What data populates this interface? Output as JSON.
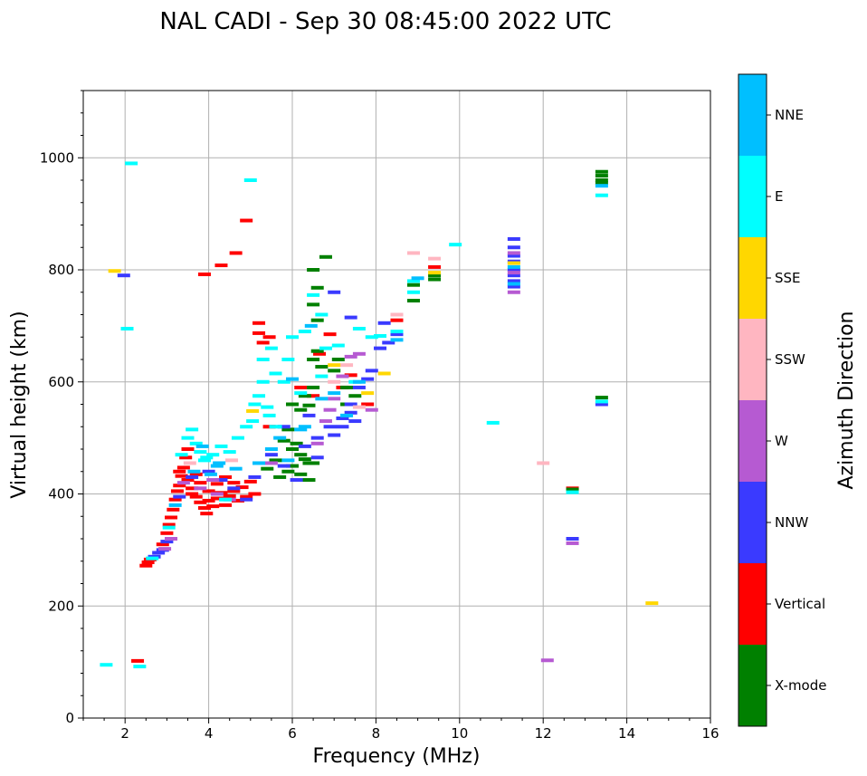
{
  "chart_data": {
    "type": "scatter",
    "title": "NAL CADI - Sep 30 08:45:00 2022 UTC",
    "xlabel": "Frequency (MHz)",
    "ylabel": "Virtual height (km)",
    "xlim": [
      1,
      16
    ],
    "ylim": [
      0,
      1120
    ],
    "xticks": [
      2,
      4,
      6,
      8,
      10,
      12,
      14,
      16
    ],
    "yticks": [
      0,
      200,
      400,
      600,
      800,
      1000
    ],
    "grid": true,
    "colorbar": {
      "title": "Azimuth Direction",
      "categories": [
        {
          "label": "X-mode",
          "color": "#008000"
        },
        {
          "label": "Vertical",
          "color": "#ff0000"
        },
        {
          "label": "NNW",
          "color": "#3a3aff"
        },
        {
          "label": "W",
          "color": "#b65ad2"
        },
        {
          "label": "SSW",
          "color": "#ffb6c1"
        },
        {
          "label": "SSE",
          "color": "#ffd700"
        },
        {
          "label": "E",
          "color": "#00ffff"
        },
        {
          "label": "NNE",
          "color": "#00bfff"
        }
      ]
    },
    "series": [
      {
        "name": "Vertical",
        "color": "#ff0000",
        "points": [
          [
            2.5,
            272
          ],
          [
            2.55,
            278
          ],
          [
            2.6,
            283
          ],
          [
            2.9,
            310
          ],
          [
            3.0,
            330
          ],
          [
            3.05,
            345
          ],
          [
            3.1,
            358
          ],
          [
            3.15,
            372
          ],
          [
            3.2,
            390
          ],
          [
            3.25,
            405
          ],
          [
            3.3,
            415
          ],
          [
            3.35,
            432
          ],
          [
            3.4,
            447
          ],
          [
            3.5,
            425
          ],
          [
            3.6,
            410
          ],
          [
            3.7,
            395
          ],
          [
            3.8,
            385
          ],
          [
            3.9,
            375
          ],
          [
            3.95,
            365
          ],
          [
            4.0,
            388
          ],
          [
            4.1,
            378
          ],
          [
            4.2,
            392
          ],
          [
            4.3,
            402
          ],
          [
            4.4,
            380
          ],
          [
            4.5,
            396
          ],
          [
            4.6,
            405
          ],
          [
            4.7,
            388
          ],
          [
            4.8,
            412
          ],
          [
            4.9,
            395
          ],
          [
            5.0,
            422
          ],
          [
            5.1,
            400
          ],
          [
            3.6,
            400
          ],
          [
            3.8,
            420
          ],
          [
            4.0,
            405
          ],
          [
            4.2,
            418
          ],
          [
            3.45,
            465
          ],
          [
            3.7,
            435
          ],
          [
            4.4,
            430
          ],
          [
            3.3,
            440
          ],
          [
            3.5,
            480
          ],
          [
            4.6,
            420
          ],
          [
            5.2,
            705
          ],
          [
            5.3,
            670
          ],
          [
            5.45,
            680
          ],
          [
            5.2,
            687
          ],
          [
            6.2,
            590
          ],
          [
            6.5,
            575
          ],
          [
            6.65,
            650
          ],
          [
            6.9,
            685
          ],
          [
            7.2,
            590
          ],
          [
            7.4,
            612
          ],
          [
            7.8,
            560
          ],
          [
            8.5,
            710
          ],
          [
            9.4,
            805
          ],
          [
            12.7,
            410
          ],
          [
            3.9,
            792
          ],
          [
            4.3,
            808
          ],
          [
            4.65,
            830
          ],
          [
            4.9,
            888
          ],
          [
            2.3,
            102
          ],
          [
            5.45,
            520
          ]
        ]
      },
      {
        "name": "X-mode",
        "color": "#008000",
        "points": [
          [
            5.8,
            495
          ],
          [
            6.0,
            480
          ],
          [
            6.2,
            470
          ],
          [
            6.4,
            455
          ],
          [
            5.6,
            460
          ],
          [
            5.9,
            440
          ],
          [
            6.2,
            435
          ],
          [
            6.4,
            425
          ],
          [
            5.4,
            445
          ],
          [
            5.7,
            430
          ],
          [
            6.0,
            450
          ],
          [
            6.1,
            490
          ],
          [
            6.3,
            462
          ],
          [
            6.5,
            455
          ],
          [
            6.3,
            575
          ],
          [
            6.4,
            558
          ],
          [
            6.2,
            550
          ],
          [
            6.5,
            590
          ],
          [
            6.5,
            640
          ],
          [
            6.7,
            627
          ],
          [
            6.6,
            655
          ],
          [
            6.6,
            710
          ],
          [
            6.5,
            738
          ],
          [
            6.6,
            768
          ],
          [
            6.5,
            800
          ],
          [
            6.8,
            823
          ],
          [
            7.3,
            590
          ],
          [
            7.1,
            640
          ],
          [
            7.0,
            620
          ],
          [
            7.3,
            560
          ],
          [
            7.5,
            575
          ],
          [
            8.9,
            745
          ],
          [
            8.9,
            773
          ],
          [
            9.4,
            783
          ],
          [
            9.4,
            790
          ],
          [
            12.7,
            408
          ],
          [
            13.4,
            572
          ],
          [
            13.4,
            960
          ],
          [
            13.4,
            968
          ],
          [
            13.4,
            975
          ],
          [
            13.4,
            955
          ],
          [
            6.0,
            560
          ],
          [
            5.9,
            515
          ]
        ]
      },
      {
        "name": "NNW",
        "color": "#3a3aff",
        "points": [
          [
            2.7,
            288
          ],
          [
            2.8,
            295
          ],
          [
            2.9,
            300
          ],
          [
            3.0,
            315
          ],
          [
            3.3,
            395
          ],
          [
            3.6,
            430
          ],
          [
            4.0,
            440
          ],
          [
            4.3,
            425
          ],
          [
            4.6,
            410
          ],
          [
            4.9,
            390
          ],
          [
            5.1,
            430
          ],
          [
            5.5,
            470
          ],
          [
            5.8,
            450
          ],
          [
            6.1,
            425
          ],
          [
            6.3,
            485
          ],
          [
            6.6,
            500
          ],
          [
            6.9,
            520
          ],
          [
            7.2,
            535
          ],
          [
            7.4,
            560
          ],
          [
            7.6,
            590
          ],
          [
            7.5,
            530
          ],
          [
            7.8,
            605
          ],
          [
            7.9,
            620
          ],
          [
            8.1,
            660
          ],
          [
            8.3,
            670
          ],
          [
            8.5,
            685
          ],
          [
            8.2,
            705
          ],
          [
            7.0,
            760
          ],
          [
            7.4,
            715
          ],
          [
            11.3,
            855
          ],
          [
            11.3,
            840
          ],
          [
            11.3,
            825
          ],
          [
            11.3,
            815
          ],
          [
            11.3,
            800
          ],
          [
            11.3,
            790
          ],
          [
            11.3,
            780
          ],
          [
            11.3,
            770
          ],
          [
            12.7,
            320
          ],
          [
            13.4,
            560
          ],
          [
            1.97,
            790
          ],
          [
            7.2,
            520
          ],
          [
            7.0,
            505
          ],
          [
            7.4,
            545
          ],
          [
            6.6,
            465
          ],
          [
            5.8,
            520
          ],
          [
            6.4,
            540
          ]
        ]
      },
      {
        "name": "W",
        "color": "#b65ad2",
        "points": [
          [
            2.95,
            302
          ],
          [
            3.1,
            320
          ],
          [
            3.4,
            420
          ],
          [
            3.8,
            410
          ],
          [
            4.2,
            400
          ],
          [
            4.5,
            390
          ],
          [
            6.6,
            490
          ],
          [
            6.9,
            550
          ],
          [
            7.2,
            610
          ],
          [
            7.4,
            645
          ],
          [
            7.6,
            650
          ],
          [
            7.9,
            550
          ],
          [
            11.3,
            760
          ],
          [
            11.3,
            795
          ],
          [
            11.3,
            830
          ],
          [
            12.7,
            312
          ],
          [
            12.1,
            103
          ],
          [
            5.5,
            455
          ],
          [
            4.1,
            425
          ],
          [
            6.8,
            530
          ],
          [
            7.0,
            570
          ]
        ]
      },
      {
        "name": "SSW",
        "color": "#ffb6c1",
        "points": [
          [
            3.55,
            455
          ],
          [
            4.55,
            460
          ],
          [
            7.0,
            600
          ],
          [
            7.3,
            630
          ],
          [
            8.5,
            720
          ],
          [
            8.9,
            830
          ],
          [
            9.4,
            820
          ],
          [
            12.0,
            455
          ],
          [
            7.6,
            555
          ]
        ]
      },
      {
        "name": "SSE",
        "color": "#ffd700",
        "points": [
          [
            5.05,
            548
          ],
          [
            7.0,
            630
          ],
          [
            7.8,
            580
          ],
          [
            8.2,
            615
          ],
          [
            9.4,
            795
          ],
          [
            11.3,
            812
          ],
          [
            14.6,
            205
          ],
          [
            1.75,
            798
          ]
        ]
      },
      {
        "name": "E",
        "color": "#00ffff",
        "points": [
          [
            2.65,
            285
          ],
          [
            3.05,
            340
          ],
          [
            3.35,
            470
          ],
          [
            3.5,
            500
          ],
          [
            3.6,
            515
          ],
          [
            3.7,
            490
          ],
          [
            3.8,
            475
          ],
          [
            3.95,
            465
          ],
          [
            4.1,
            470
          ],
          [
            4.3,
            485
          ],
          [
            4.5,
            475
          ],
          [
            4.7,
            500
          ],
          [
            4.9,
            520
          ],
          [
            5.05,
            530
          ],
          [
            5.1,
            560
          ],
          [
            5.2,
            575
          ],
          [
            5.3,
            600
          ],
          [
            5.4,
            555
          ],
          [
            5.45,
            540
          ],
          [
            5.3,
            640
          ],
          [
            5.5,
            660
          ],
          [
            5.6,
            615
          ],
          [
            5.8,
            600
          ],
          [
            5.9,
            640
          ],
          [
            6.0,
            680
          ],
          [
            6.3,
            690
          ],
          [
            6.5,
            755
          ],
          [
            6.7,
            720
          ],
          [
            6.8,
            660
          ],
          [
            7.1,
            665
          ],
          [
            7.6,
            695
          ],
          [
            7.9,
            680
          ],
          [
            8.1,
            682
          ],
          [
            8.5,
            690
          ],
          [
            8.9,
            780
          ],
          [
            8.9,
            760
          ],
          [
            9.9,
            845
          ],
          [
            10.8,
            527
          ],
          [
            12.7,
            403
          ],
          [
            13.4,
            933
          ],
          [
            13.4,
            565
          ],
          [
            2.15,
            990
          ],
          [
            2.05,
            695
          ],
          [
            1.55,
            95
          ],
          [
            2.35,
            92
          ],
          [
            5.0,
            960
          ],
          [
            4.4,
            390
          ],
          [
            3.9,
            460
          ],
          [
            5.6,
            520
          ],
          [
            6.2,
            580
          ],
          [
            6.7,
            610
          ],
          [
            7.5,
            600
          ]
        ]
      },
      {
        "name": "NNE",
        "color": "#00bfff",
        "points": [
          [
            3.2,
            380
          ],
          [
            3.65,
            440
          ],
          [
            4.05,
            435
          ],
          [
            4.25,
            455
          ],
          [
            4.65,
            445
          ],
          [
            5.2,
            455
          ],
          [
            5.5,
            480
          ],
          [
            5.9,
            460
          ],
          [
            6.3,
            520
          ],
          [
            6.7,
            570
          ],
          [
            7.0,
            580
          ],
          [
            7.3,
            540
          ],
          [
            7.6,
            600
          ],
          [
            8.5,
            675
          ],
          [
            9.0,
            785
          ],
          [
            11.3,
            775
          ],
          [
            11.3,
            805
          ],
          [
            13.4,
            950
          ],
          [
            6.0,
            605
          ],
          [
            6.45,
            700
          ],
          [
            5.7,
            500
          ],
          [
            4.2,
            450
          ],
          [
            6.2,
            515
          ],
          [
            3.85,
            485
          ]
        ]
      }
    ]
  }
}
